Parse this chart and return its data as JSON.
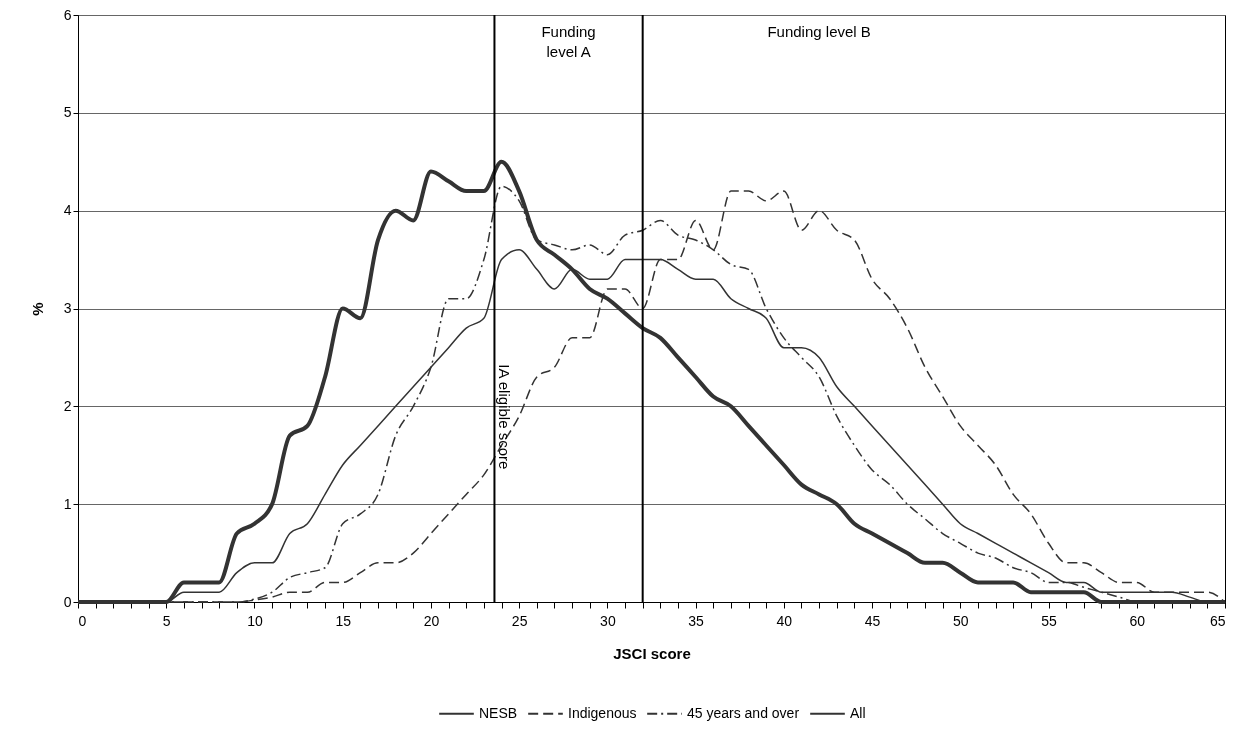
{
  "chart_data": {
    "type": "line",
    "xlabel": "JSCI score",
    "ylabel": "%",
    "x": [
      0,
      1,
      2,
      3,
      4,
      5,
      6,
      7,
      8,
      9,
      10,
      11,
      12,
      13,
      14,
      15,
      16,
      17,
      18,
      19,
      20,
      21,
      22,
      23,
      24,
      25,
      26,
      27,
      28,
      29,
      30,
      31,
      32,
      33,
      34,
      35,
      36,
      37,
      38,
      39,
      40,
      41,
      42,
      43,
      44,
      45,
      46,
      47,
      48,
      49,
      50,
      51,
      52,
      53,
      54,
      55,
      56,
      57,
      58,
      59,
      60,
      61,
      62,
      63,
      64,
      65
    ],
    "series": [
      {
        "name": "NESB",
        "color": "#333333",
        "line_style": "solid",
        "values": [
          0,
          0,
          0,
          0,
          0,
          0,
          0.1,
          0.1,
          0.1,
          0.3,
          0.4,
          0.4,
          0.7,
          0.8,
          1.1,
          1.4,
          1.6,
          1.8,
          2.0,
          2.2,
          2.4,
          2.6,
          2.8,
          2.9,
          3.5,
          3.6,
          3.4,
          3.2,
          3.4,
          3.3,
          3.3,
          3.5,
          3.5,
          3.5,
          3.4,
          3.3,
          3.3,
          3.1,
          3.0,
          2.9,
          2.6,
          2.6,
          2.5,
          2.2,
          2.0,
          1.8,
          1.6,
          1.4,
          1.2,
          1.0,
          0.8,
          0.7,
          0.6,
          0.5,
          0.4,
          0.3,
          0.2,
          0.2,
          0.1,
          0.1,
          0.1,
          0.1,
          0.1,
          0.05,
          0,
          0
        ]
      },
      {
        "name": "Indigenous",
        "color": "#333333",
        "line_style": "dashed",
        "values": [
          0,
          0,
          0,
          0,
          0,
          0,
          0,
          0,
          0,
          0,
          0.02,
          0.05,
          0.1,
          0.1,
          0.2,
          0.2,
          0.3,
          0.4,
          0.4,
          0.5,
          0.7,
          0.9,
          1.1,
          1.3,
          1.6,
          1.9,
          2.3,
          2.4,
          2.7,
          2.7,
          3.2,
          3.2,
          3.0,
          3.5,
          3.5,
          3.9,
          3.6,
          4.2,
          4.2,
          4.1,
          4.2,
          3.8,
          4.0,
          3.8,
          3.7,
          3.3,
          3.1,
          2.8,
          2.4,
          2.1,
          1.8,
          1.6,
          1.4,
          1.1,
          0.9,
          0.6,
          0.4,
          0.4,
          0.3,
          0.2,
          0.2,
          0.1,
          0.1,
          0.1,
          0.1,
          0
        ]
      },
      {
        "name": "45 years and over",
        "color": "#333333",
        "line_style": "dashdot",
        "values": [
          0,
          0,
          0,
          0,
          0,
          0,
          0,
          0,
          0,
          0,
          0.03,
          0.1,
          0.25,
          0.3,
          0.35,
          0.8,
          0.9,
          1.1,
          1.7,
          2.0,
          2.4,
          3.1,
          3.1,
          3.5,
          4.25,
          4.1,
          3.7,
          3.65,
          3.6,
          3.65,
          3.55,
          3.75,
          3.8,
          3.9,
          3.75,
          3.7,
          3.6,
          3.45,
          3.4,
          3.0,
          2.7,
          2.5,
          2.3,
          1.9,
          1.6,
          1.35,
          1.2,
          1.0,
          0.85,
          0.7,
          0.6,
          0.5,
          0.45,
          0.35,
          0.3,
          0.2,
          0.2,
          0.15,
          0.1,
          0.05,
          0,
          0,
          0,
          0,
          0,
          0
        ]
      },
      {
        "name": "All",
        "color": "#333333",
        "line_style": "solid",
        "values": [
          0,
          0,
          0,
          0,
          0,
          0,
          0.2,
          0.2,
          0.2,
          0.7,
          0.8,
          1.0,
          1.7,
          1.8,
          2.3,
          3.0,
          2.9,
          3.7,
          4.0,
          3.9,
          4.4,
          4.3,
          4.2,
          4.2,
          4.5,
          4.2,
          3.7,
          3.55,
          3.4,
          3.2,
          3.1,
          2.95,
          2.8,
          2.7,
          2.5,
          2.3,
          2.1,
          2.0,
          1.8,
          1.6,
          1.4,
          1.2,
          1.1,
          1.0,
          0.8,
          0.7,
          0.6,
          0.5,
          0.4,
          0.4,
          0.3,
          0.2,
          0.2,
          0.2,
          0.1,
          0.1,
          0.1,
          0.1,
          0,
          0,
          0,
          0,
          0,
          0,
          0,
          0
        ]
      }
    ],
    "xlim": [
      0,
      65
    ],
    "xticks": [
      0,
      {
        "value": 1,
        "label": null
      },
      {
        "value": 2,
        "label": null
      },
      {
        "value": 3,
        "label": null
      },
      {
        "value": 4,
        "label": null
      },
      5,
      {
        "value": 6,
        "label": null
      },
      {
        "value": 7,
        "label": null
      },
      {
        "value": 8,
        "label": null
      },
      {
        "value": 9,
        "label": null
      },
      10,
      {
        "value": 11,
        "label": null
      },
      {
        "value": 12,
        "label": null
      },
      {
        "value": 13,
        "label": null
      },
      {
        "value": 14,
        "label": null
      },
      15,
      {
        "value": 16,
        "label": null
      },
      {
        "value": 17,
        "label": null
      },
      {
        "value": 18,
        "label": null
      },
      {
        "value": 19,
        "label": null
      },
      20,
      {
        "value": 21,
        "label": null
      },
      {
        "value": 22,
        "label": null
      },
      {
        "value": 23,
        "label": null
      },
      {
        "value": 24,
        "label": null
      },
      25,
      {
        "value": 26,
        "label": null
      },
      {
        "value": 27,
        "label": null
      },
      {
        "value": 28,
        "label": null
      },
      {
        "value": 29,
        "label": null
      },
      30,
      {
        "value": 31,
        "label": null
      },
      {
        "value": 32,
        "label": null
      },
      {
        "value": 33,
        "label": null
      },
      {
        "value": 34,
        "label": null
      },
      35,
      {
        "value": 36,
        "label": null
      },
      {
        "value": 37,
        "label": null
      },
      {
        "value": 38,
        "label": null
      },
      {
        "value": 39,
        "label": null
      },
      40,
      {
        "value": 41,
        "label": null
      },
      {
        "value": 42,
        "label": null
      },
      {
        "value": 43,
        "label": null
      },
      {
        "value": 44,
        "label": null
      },
      45,
      {
        "value": 46,
        "label": null
      },
      {
        "value": 47,
        "label": null
      },
      {
        "value": 48,
        "label": null
      },
      {
        "value": 49,
        "label": null
      },
      50,
      {
        "value": 51,
        "label": null
      },
      {
        "value": 52,
        "label": null
      },
      {
        "value": 53,
        "label": null
      },
      {
        "value": 54,
        "label": null
      },
      55,
      {
        "value": 56,
        "label": null
      },
      {
        "value": 57,
        "label": null
      },
      {
        "value": 58,
        "label": null
      },
      {
        "value": 59,
        "label": null
      },
      60,
      {
        "value": 61,
        "label": null
      },
      {
        "value": 62,
        "label": null
      },
      {
        "value": 63,
        "label": null
      },
      {
        "value": 64,
        "label": null
      },
      65
    ],
    "ylim": [
      0,
      6
    ],
    "yticks": [
      0,
      1,
      2,
      3,
      4,
      5,
      6
    ],
    "grid": "y",
    "legend": "bottom",
    "marker": "none",
    "ref_lines": [
      {
        "axis": "x",
        "value": 23.6,
        "label": "IA eligible score",
        "color": "#000000"
      },
      {
        "axis": "x",
        "value": 32,
        "color": "#000000"
      }
    ],
    "annotations": [
      "Funding level A",
      "Funding level B"
    ]
  }
}
